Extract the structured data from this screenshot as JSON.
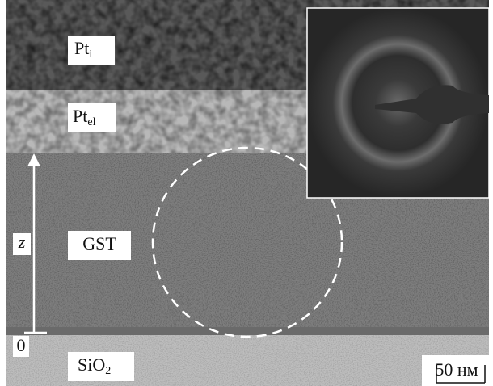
{
  "layers": [
    {
      "base": "Pt",
      "sub": "i"
    },
    {
      "base": "Pt",
      "sub": "el"
    },
    {
      "base": "GST"
    },
    {
      "base": "SiO",
      "sub": "2"
    }
  ],
  "axis": {
    "label": "z",
    "origin": "0"
  },
  "scale_bar": "50 нм"
}
